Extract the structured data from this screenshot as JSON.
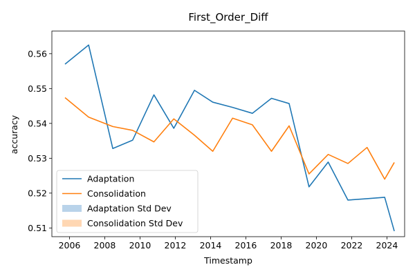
{
  "chart_data": {
    "type": "line",
    "title": "First_Order_Diff",
    "xlabel": "Timestamp",
    "ylabel": "accuracy",
    "xlim": [
      "2005-01-01",
      "2025-01-01"
    ],
    "ylim": [
      0.5075,
      0.5665
    ],
    "x_ticks": [
      "2006-01-01",
      "2008-01-01",
      "2010-01-01",
      "2012-01-01",
      "2014-01-01",
      "2016-01-01",
      "2018-01-01",
      "2020-01-01",
      "2022-01-01",
      "2024-01-01"
    ],
    "x_tick_labels": [
      "2006",
      "2008",
      "2010",
      "2012",
      "2014",
      "2016",
      "2018",
      "2020",
      "2022",
      "2024"
    ],
    "y_ticks": [
      0.51,
      0.52,
      0.53,
      0.54,
      0.55,
      0.56
    ],
    "y_tick_labels": [
      "0.51",
      "0.52",
      "0.53",
      "0.54",
      "0.55",
      "0.56"
    ],
    "grid": false,
    "legend_position": "lower-left",
    "x": [
      "2005-09-30",
      "2007-02-01",
      "2008-06-15",
      "2009-08-01",
      "2010-10-15",
      "2011-12-01",
      "2013-02-01",
      "2014-02-15",
      "2015-04-01",
      "2016-05-15",
      "2017-06-15",
      "2018-06-15",
      "2019-08-01",
      "2020-09-01",
      "2021-10-15",
      "2022-11-15",
      "2023-11-15",
      "2024-06-01"
    ],
    "series": [
      {
        "name": "Adaptation",
        "color": "#1f77b4",
        "values": [
          0.557,
          0.5625,
          0.5328,
          0.5352,
          0.5482,
          0.5386,
          0.5495,
          0.5461,
          0.5446,
          0.5429,
          0.5472,
          0.5457,
          0.5218,
          0.5289,
          0.518,
          0.5184,
          0.5188,
          0.5091
        ]
      },
      {
        "name": "Consolidation",
        "color": "#ff7f0e",
        "values": [
          0.5474,
          0.5418,
          0.5391,
          0.538,
          0.5347,
          0.5413,
          0.5366,
          0.532,
          0.5415,
          0.5396,
          0.532,
          0.5393,
          0.5255,
          0.5311,
          0.5285,
          0.5331,
          0.524,
          0.5288
        ]
      }
    ],
    "legend": [
      {
        "label": "Adaptation",
        "kind": "line",
        "color": "#1f77b4"
      },
      {
        "label": "Consolidation",
        "kind": "line",
        "color": "#ff7f0e"
      },
      {
        "label": "Adaptation Std Dev",
        "kind": "patch",
        "color": "#b9d3ea"
      },
      {
        "label": "Consolidation Std Dev",
        "kind": "patch",
        "color": "#ffd7b3"
      }
    ]
  }
}
